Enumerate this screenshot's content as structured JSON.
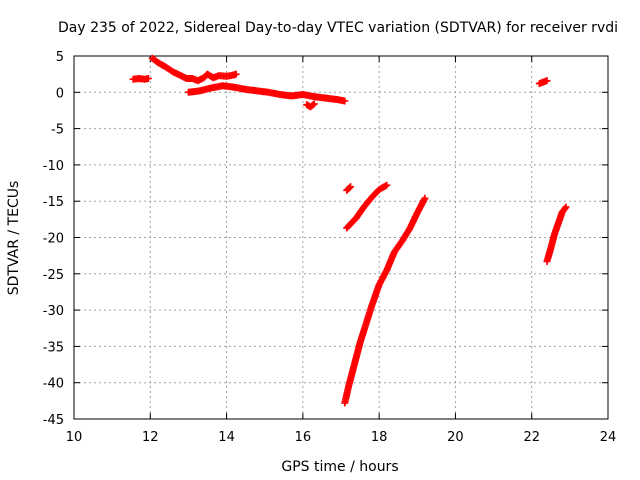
{
  "chart_data": {
    "type": "scatter",
    "title": "Day 235 of 2022, Sidereal Day-to-day VTEC variation (SDTVAR) for receiver rvdi",
    "xlabel": "GPS time / hours",
    "ylabel": "SDTVAR / TECUs",
    "xlim": [
      10,
      24
    ],
    "ylim": [
      -45,
      5
    ],
    "xticks": [
      "10",
      "12",
      "14",
      "16",
      "18",
      "20",
      "22",
      "24"
    ],
    "yticks": [
      "5",
      "0",
      "-5",
      "-10",
      "-15",
      "-20",
      "-25",
      "-30",
      "-35",
      "-40",
      "-45"
    ],
    "grid": true,
    "marker": "plus",
    "color": "#ff0000",
    "segments": [
      [
        [
          11.55,
          1.8
        ],
        [
          11.7,
          1.9
        ],
        [
          11.85,
          1.8
        ],
        [
          11.95,
          1.9
        ]
      ],
      [
        [
          12.05,
          4.7
        ],
        [
          12.2,
          4.1
        ],
        [
          12.4,
          3.5
        ],
        [
          12.6,
          2.8
        ],
        [
          12.8,
          2.3
        ],
        [
          12.95,
          1.9
        ],
        [
          13.1,
          1.9
        ],
        [
          13.25,
          1.6
        ],
        [
          13.4,
          2.0
        ],
        [
          13.5,
          2.5
        ],
        [
          13.65,
          2.0
        ],
        [
          13.8,
          2.3
        ],
        [
          14.0,
          2.2
        ],
        [
          14.2,
          2.4
        ],
        [
          14.25,
          2.5
        ]
      ],
      [
        [
          13.0,
          0.0
        ],
        [
          13.3,
          0.2
        ],
        [
          13.6,
          0.6
        ],
        [
          13.9,
          0.9
        ],
        [
          14.2,
          0.7
        ],
        [
          14.5,
          0.4
        ],
        [
          14.8,
          0.2
        ],
        [
          15.1,
          0.0
        ],
        [
          15.4,
          -0.3
        ],
        [
          15.7,
          -0.5
        ],
        [
          16.0,
          -0.3
        ],
        [
          16.3,
          -0.6
        ],
        [
          16.6,
          -0.8
        ],
        [
          16.9,
          -1.0
        ],
        [
          17.1,
          -1.2
        ]
      ],
      [
        [
          16.1,
          -1.7
        ],
        [
          16.2,
          -2.0
        ],
        [
          16.3,
          -1.6
        ]
      ],
      [
        [
          17.15,
          -13.5
        ],
        [
          17.25,
          -13.0
        ]
      ],
      [
        [
          17.15,
          -18.7
        ],
        [
          17.4,
          -17.3
        ],
        [
          17.6,
          -15.8
        ],
        [
          17.8,
          -14.5
        ],
        [
          18.0,
          -13.4
        ],
        [
          18.2,
          -12.8
        ]
      ],
      [
        [
          17.1,
          -42.8
        ],
        [
          17.2,
          -40.5
        ],
        [
          17.35,
          -37.5
        ],
        [
          17.5,
          -34.5
        ],
        [
          17.65,
          -32.0
        ],
        [
          17.8,
          -29.5
        ],
        [
          18.0,
          -26.5
        ],
        [
          18.2,
          -24.5
        ],
        [
          18.4,
          -22.0
        ],
        [
          18.6,
          -20.5
        ],
        [
          18.8,
          -18.8
        ],
        [
          19.0,
          -16.6
        ],
        [
          19.2,
          -14.6
        ]
      ],
      [
        [
          22.2,
          1.2
        ],
        [
          22.3,
          1.4
        ],
        [
          22.4,
          1.6
        ]
      ],
      [
        [
          22.4,
          -23.3
        ],
        [
          22.5,
          -21.5
        ],
        [
          22.6,
          -19.5
        ],
        [
          22.7,
          -18.0
        ],
        [
          22.8,
          -16.5
        ],
        [
          22.9,
          -15.8
        ]
      ]
    ]
  }
}
